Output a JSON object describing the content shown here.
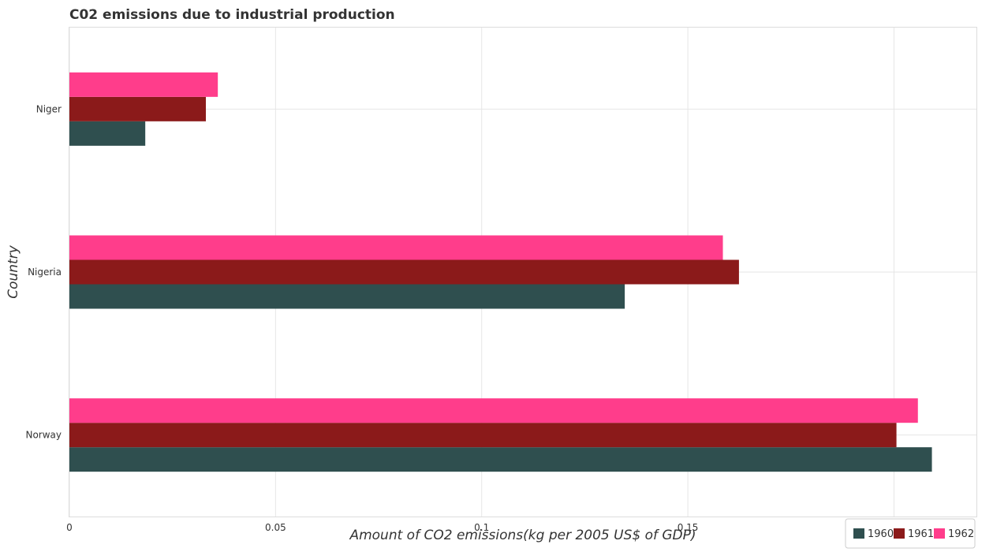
{
  "chart_data": {
    "type": "bar",
    "orientation": "horizontal",
    "title": "C02 emissions due to industrial production",
    "xlabel": "Amount of CO2 emissions(kg per 2005 US$ of GDP)",
    "ylabel": "Country",
    "categories": [
      "Niger",
      "Nigeria",
      "Norway"
    ],
    "series": [
      {
        "name": "1960",
        "color": "#2f4f4f",
        "values": [
          0.0184,
          0.1347,
          0.2092
        ]
      },
      {
        "name": "1961",
        "color": "#8b1a1a",
        "values": [
          0.0331,
          0.1624,
          0.2006
        ]
      },
      {
        "name": "1962",
        "color": "#ff3d8b",
        "values": [
          0.036,
          0.1585,
          0.2058
        ]
      }
    ],
    "xlim": [
      0,
      0.22
    ],
    "xticks": [
      0,
      0.05,
      0.1,
      0.15,
      0.2
    ],
    "xtick_labels": [
      "0",
      "0.05",
      "0.1",
      "0.15",
      "0.2"
    ],
    "grid": true,
    "legend_position": "bottom-right"
  }
}
